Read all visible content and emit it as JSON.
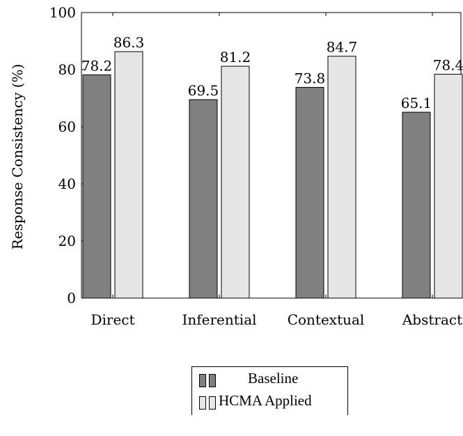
{
  "chart_data": {
    "type": "bar",
    "categories": [
      "Direct",
      "Inferential",
      "Contextual",
      "Abstract"
    ],
    "series": [
      {
        "name": "Baseline",
        "values": [
          78.2,
          69.5,
          73.8,
          65.1
        ],
        "color": "#808080"
      },
      {
        "name": "HCMA Applied",
        "values": [
          86.3,
          81.2,
          84.7,
          78.4
        ],
        "color": "#e6e6e6"
      }
    ],
    "data_labels": [
      [
        "78.2",
        "69.5",
        "73.8",
        "65.1"
      ],
      [
        "86.3",
        "81.2",
        "84.7",
        "78.4"
      ]
    ],
    "ylabel": "Response Consistency (%)",
    "xlabel": "",
    "ylim": [
      0,
      100
    ],
    "yticks": [
      0,
      20,
      40,
      60,
      80,
      100
    ],
    "grid": false,
    "legend_position": "bottom-center"
  }
}
